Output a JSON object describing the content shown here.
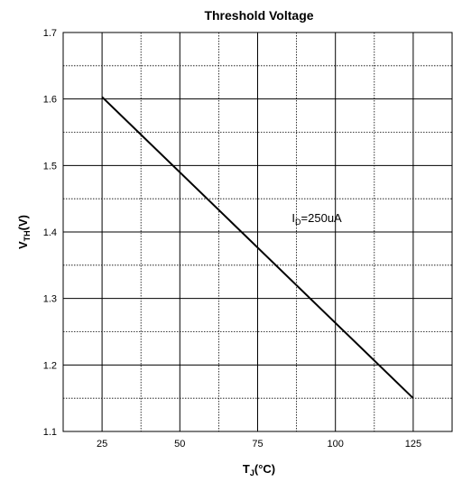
{
  "chart_data": {
    "type": "line",
    "title": "Threshold Voltage",
    "xlabel": {
      "main": "T",
      "sub": "J",
      "unit": "(°C)"
    },
    "ylabel": {
      "main": "V",
      "sub": "TH",
      "unit": "(V)"
    },
    "xlim": [
      12.5,
      137.5
    ],
    "ylim": [
      1.1,
      1.7
    ],
    "x_ticks": [
      25,
      50,
      75,
      100,
      125
    ],
    "x_tick_labels": [
      "25",
      "50",
      "75",
      "100",
      "125"
    ],
    "y_ticks": [
      1.1,
      1.2,
      1.3,
      1.4,
      1.5,
      1.6,
      1.7
    ],
    "y_tick_labels": [
      "1.1",
      "1.2",
      "1.3",
      "1.4",
      "1.5",
      "1.6",
      "1.7"
    ],
    "grid": true,
    "series": [
      {
        "x": [
          25,
          125
        ],
        "y": [
          1.603,
          1.15
        ],
        "color": "#000000"
      }
    ],
    "annotations": [
      {
        "main": "I",
        "sub": "D",
        "rest": "=250uA",
        "x": 86,
        "y": 1.415
      }
    ]
  }
}
